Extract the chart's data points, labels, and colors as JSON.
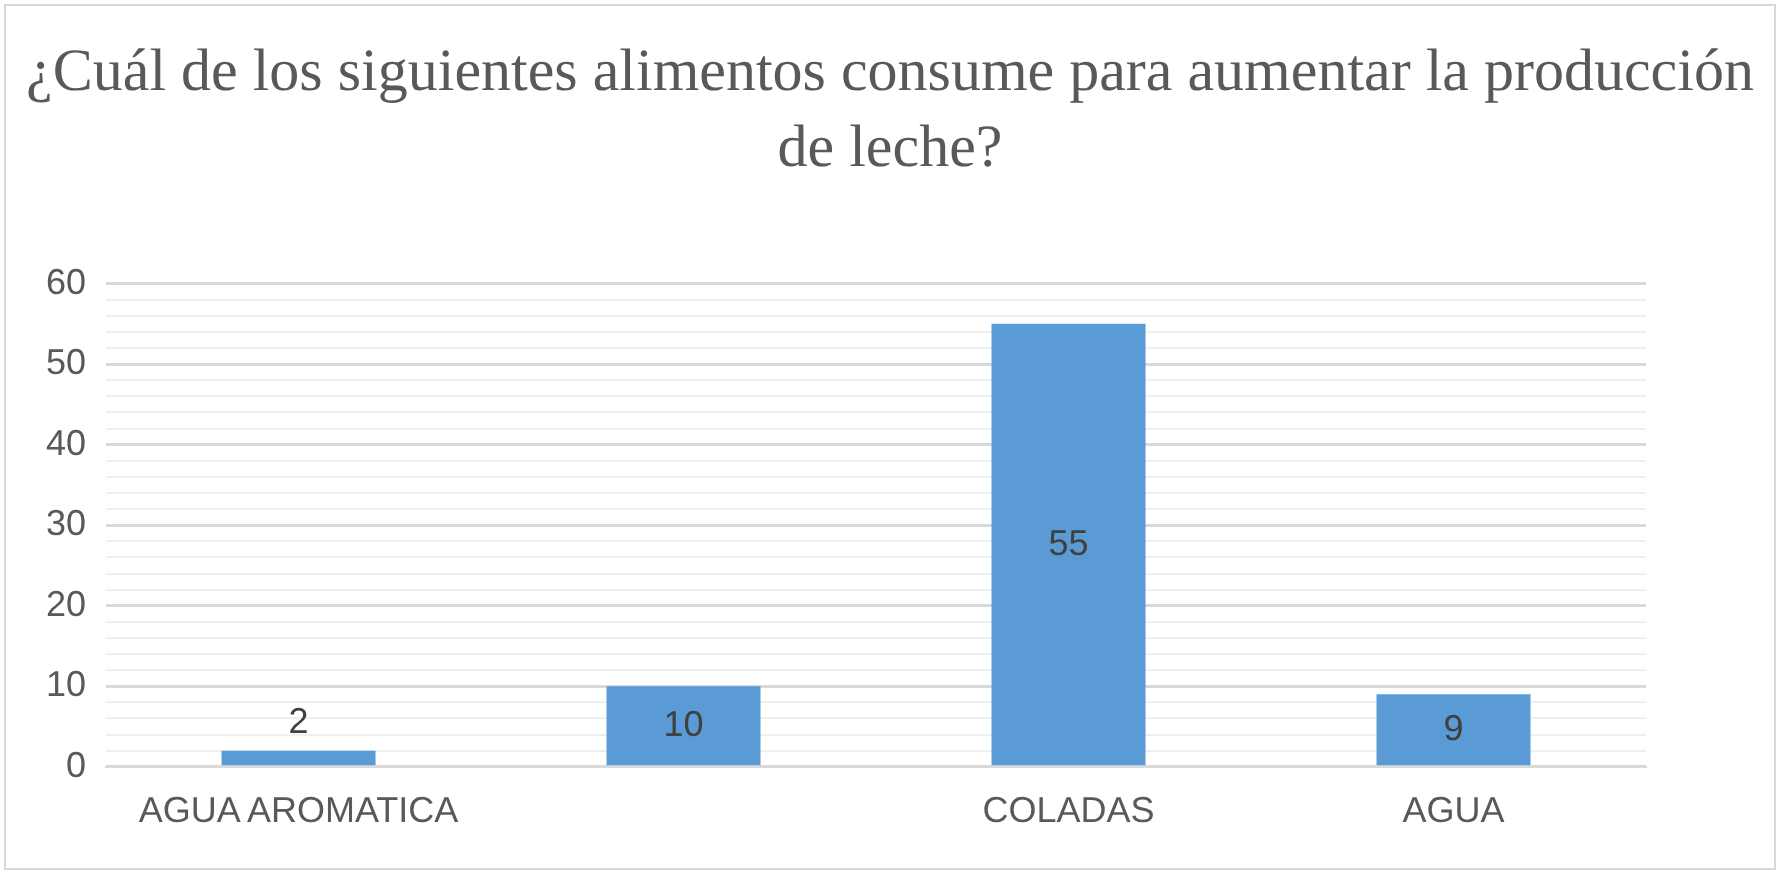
{
  "chart_data": {
    "type": "bar",
    "title": "¿Cuál de los siguientes alimentos consume para aumentar la producción de leche?",
    "categories": [
      "AGUA AROMATICA",
      null,
      "COLADAS",
      "AGUA"
    ],
    "values": [
      2,
      10,
      55,
      9
    ],
    "color": "#5b9bd5",
    "ylim": [
      0,
      60
    ],
    "yticks": [
      0,
      {
        "value": 2,
        "label": null
      },
      {
        "value": 4,
        "label": null
      },
      {
        "value": 6,
        "label": null
      },
      {
        "value": 8,
        "label": null
      },
      10,
      {
        "value": 12,
        "label": null
      },
      {
        "value": 14,
        "label": null
      },
      {
        "value": 16,
        "label": null
      },
      {
        "value": 18,
        "label": null
      },
      20,
      {
        "value": 22,
        "label": null
      },
      {
        "value": 24,
        "label": null
      },
      {
        "value": 26,
        "label": null
      },
      {
        "value": 28,
        "label": null
      },
      30,
      {
        "value": 32,
        "label": null
      },
      {
        "value": 34,
        "label": null
      },
      {
        "value": 36,
        "label": null
      },
      {
        "value": 38,
        "label": null
      },
      40,
      {
        "value": 42,
        "label": null
      },
      {
        "value": 44,
        "label": null
      },
      {
        "value": 46,
        "label": null
      },
      {
        "value": 48,
        "label": null
      },
      50,
      {
        "value": 52,
        "label": null
      },
      {
        "value": 54,
        "label": null
      },
      {
        "value": 56,
        "label": null
      },
      {
        "value": 58,
        "label": null
      },
      60
    ],
    "grid": "y",
    "data_labels": true,
    "legend": false
  }
}
